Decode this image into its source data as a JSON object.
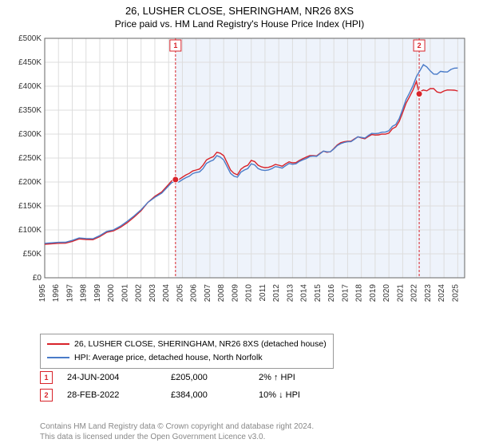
{
  "title": "26, LUSHER CLOSE, SHERINGHAM, NR26 8XS",
  "subtitle": "Price paid vs. HM Land Registry's House Price Index (HPI)",
  "chart": {
    "type": "line",
    "background_color": "#ffffff",
    "plot_background_color": "#ffffff",
    "grid_color": "#dddddd",
    "axis_color": "#666666",
    "xlim": [
      1995,
      2025.5
    ],
    "ylim": [
      0,
      500000
    ],
    "ytick_step": 50000,
    "ytick_labels": [
      "£0",
      "£50K",
      "£100K",
      "£150K",
      "£200K",
      "£250K",
      "£300K",
      "£350K",
      "£400K",
      "£450K",
      "£500K"
    ],
    "xtick_step": 1,
    "xtick_labels": [
      "1995",
      "1996",
      "1997",
      "1998",
      "1999",
      "2000",
      "2001",
      "2002",
      "2003",
      "2004",
      "2005",
      "2006",
      "2007",
      "2008",
      "2009",
      "2010",
      "2011",
      "2012",
      "2013",
      "2014",
      "2015",
      "2016",
      "2017",
      "2018",
      "2019",
      "2020",
      "2021",
      "2022",
      "2023",
      "2024",
      "2025"
    ],
    "tick_fontsize": 10,
    "shaded_region": {
      "from_year": 2004.5,
      "to_year": 2025.5,
      "color": "#eef3fb"
    },
    "sale_vlines": [
      {
        "year": 2004.5,
        "color": "#d8232a",
        "label": "1"
      },
      {
        "year": 2022.2,
        "color": "#d8232a",
        "label": "2"
      }
    ],
    "line_width": 1.4,
    "series": [
      {
        "name": "property",
        "label": "26, LUSHER CLOSE, SHERINGHAM, NR26 8XS (detached house)",
        "color": "#d8232a",
        "x": [
          1995,
          1996,
          1997,
          1998,
          1999,
          2000,
          2001,
          2002,
          2003,
          2004,
          2004.5,
          2005,
          2005.5,
          2006,
          2006.5,
          2007,
          2007.5,
          2008,
          2008.5,
          2009,
          2009.5,
          2010,
          2010.5,
          2011,
          2011.5,
          2012,
          2012.5,
          2013,
          2013.5,
          2014,
          2014.5,
          2015,
          2015.5,
          2016,
          2016.5,
          2017,
          2017.5,
          2018,
          2018.5,
          2019,
          2019.5,
          2020,
          2020.5,
          2021,
          2021.5,
          2022,
          2022.2,
          2022.5,
          2023,
          2023.5,
          2024,
          2024.5,
          2025
        ],
        "y": [
          70000,
          72000,
          76000,
          80000,
          86000,
          98000,
          115000,
          140000,
          170000,
          195000,
          205000,
          210000,
          218000,
          225000,
          235000,
          250000,
          262000,
          255000,
          225000,
          215000,
          232000,
          245000,
          235000,
          230000,
          233000,
          235000,
          238000,
          240000,
          245000,
          252000,
          255000,
          260000,
          262000,
          270000,
          282000,
          285000,
          290000,
          292000,
          295000,
          298000,
          300000,
          302000,
          315000,
          345000,
          378000,
          410000,
          384000,
          392000,
          395000,
          388000,
          390000,
          392000,
          390000
        ]
      },
      {
        "name": "hpi",
        "label": "HPI: Average price, detached house, North Norfolk",
        "color": "#4a7bc8",
        "x": [
          1995,
          1996,
          1997,
          1998,
          1999,
          2000,
          2001,
          2002,
          2003,
          2004,
          2004.5,
          2005,
          2005.5,
          2006,
          2006.5,
          2007,
          2007.5,
          2008,
          2008.5,
          2009,
          2009.5,
          2010,
          2010.5,
          2011,
          2011.5,
          2012,
          2012.5,
          2013,
          2013.5,
          2014,
          2014.5,
          2015,
          2015.5,
          2016,
          2016.5,
          2017,
          2017.5,
          2018,
          2018.5,
          2019,
          2019.5,
          2020,
          2020.5,
          2021,
          2021.5,
          2022,
          2022.5,
          2023,
          2023.5,
          2024,
          2024.5,
          2025
        ],
        "y": [
          72000,
          74000,
          78000,
          82000,
          88000,
          100000,
          118000,
          142000,
          168000,
          192000,
          200000,
          205000,
          212000,
          220000,
          228000,
          243000,
          255000,
          246000,
          218000,
          210000,
          225000,
          238000,
          228000,
          224000,
          228000,
          231000,
          234000,
          237000,
          243000,
          249000,
          254000,
          259000,
          263000,
          269000,
          280000,
          284000,
          289000,
          293000,
          297000,
          301000,
          304000,
          307000,
          320000,
          352000,
          386000,
          420000,
          445000,
          432000,
          425000,
          430000,
          435000,
          438000
        ]
      }
    ],
    "sale_markers": [
      {
        "year": 2004.5,
        "price": 205000,
        "color": "#d8232a"
      },
      {
        "year": 2022.2,
        "price": 384000,
        "color": "#d8232a"
      }
    ]
  },
  "legend": {
    "items": [
      {
        "color": "#d8232a",
        "label": "26, LUSHER CLOSE, SHERINGHAM, NR26 8XS (detached house)"
      },
      {
        "color": "#4a7bc8",
        "label": "HPI: Average price, detached house, North Norfolk"
      }
    ]
  },
  "sales": [
    {
      "num": "1",
      "color": "#d8232a",
      "date": "24-JUN-2004",
      "price": "£205,000",
      "delta": "2% ↑ HPI"
    },
    {
      "num": "2",
      "color": "#d8232a",
      "date": "28-FEB-2022",
      "price": "£384,000",
      "delta": "10% ↓ HPI"
    }
  ],
  "footer_line1": "Contains HM Land Registry data © Crown copyright and database right 2024.",
  "footer_line2": "This data is licensed under the Open Government Licence v3.0."
}
